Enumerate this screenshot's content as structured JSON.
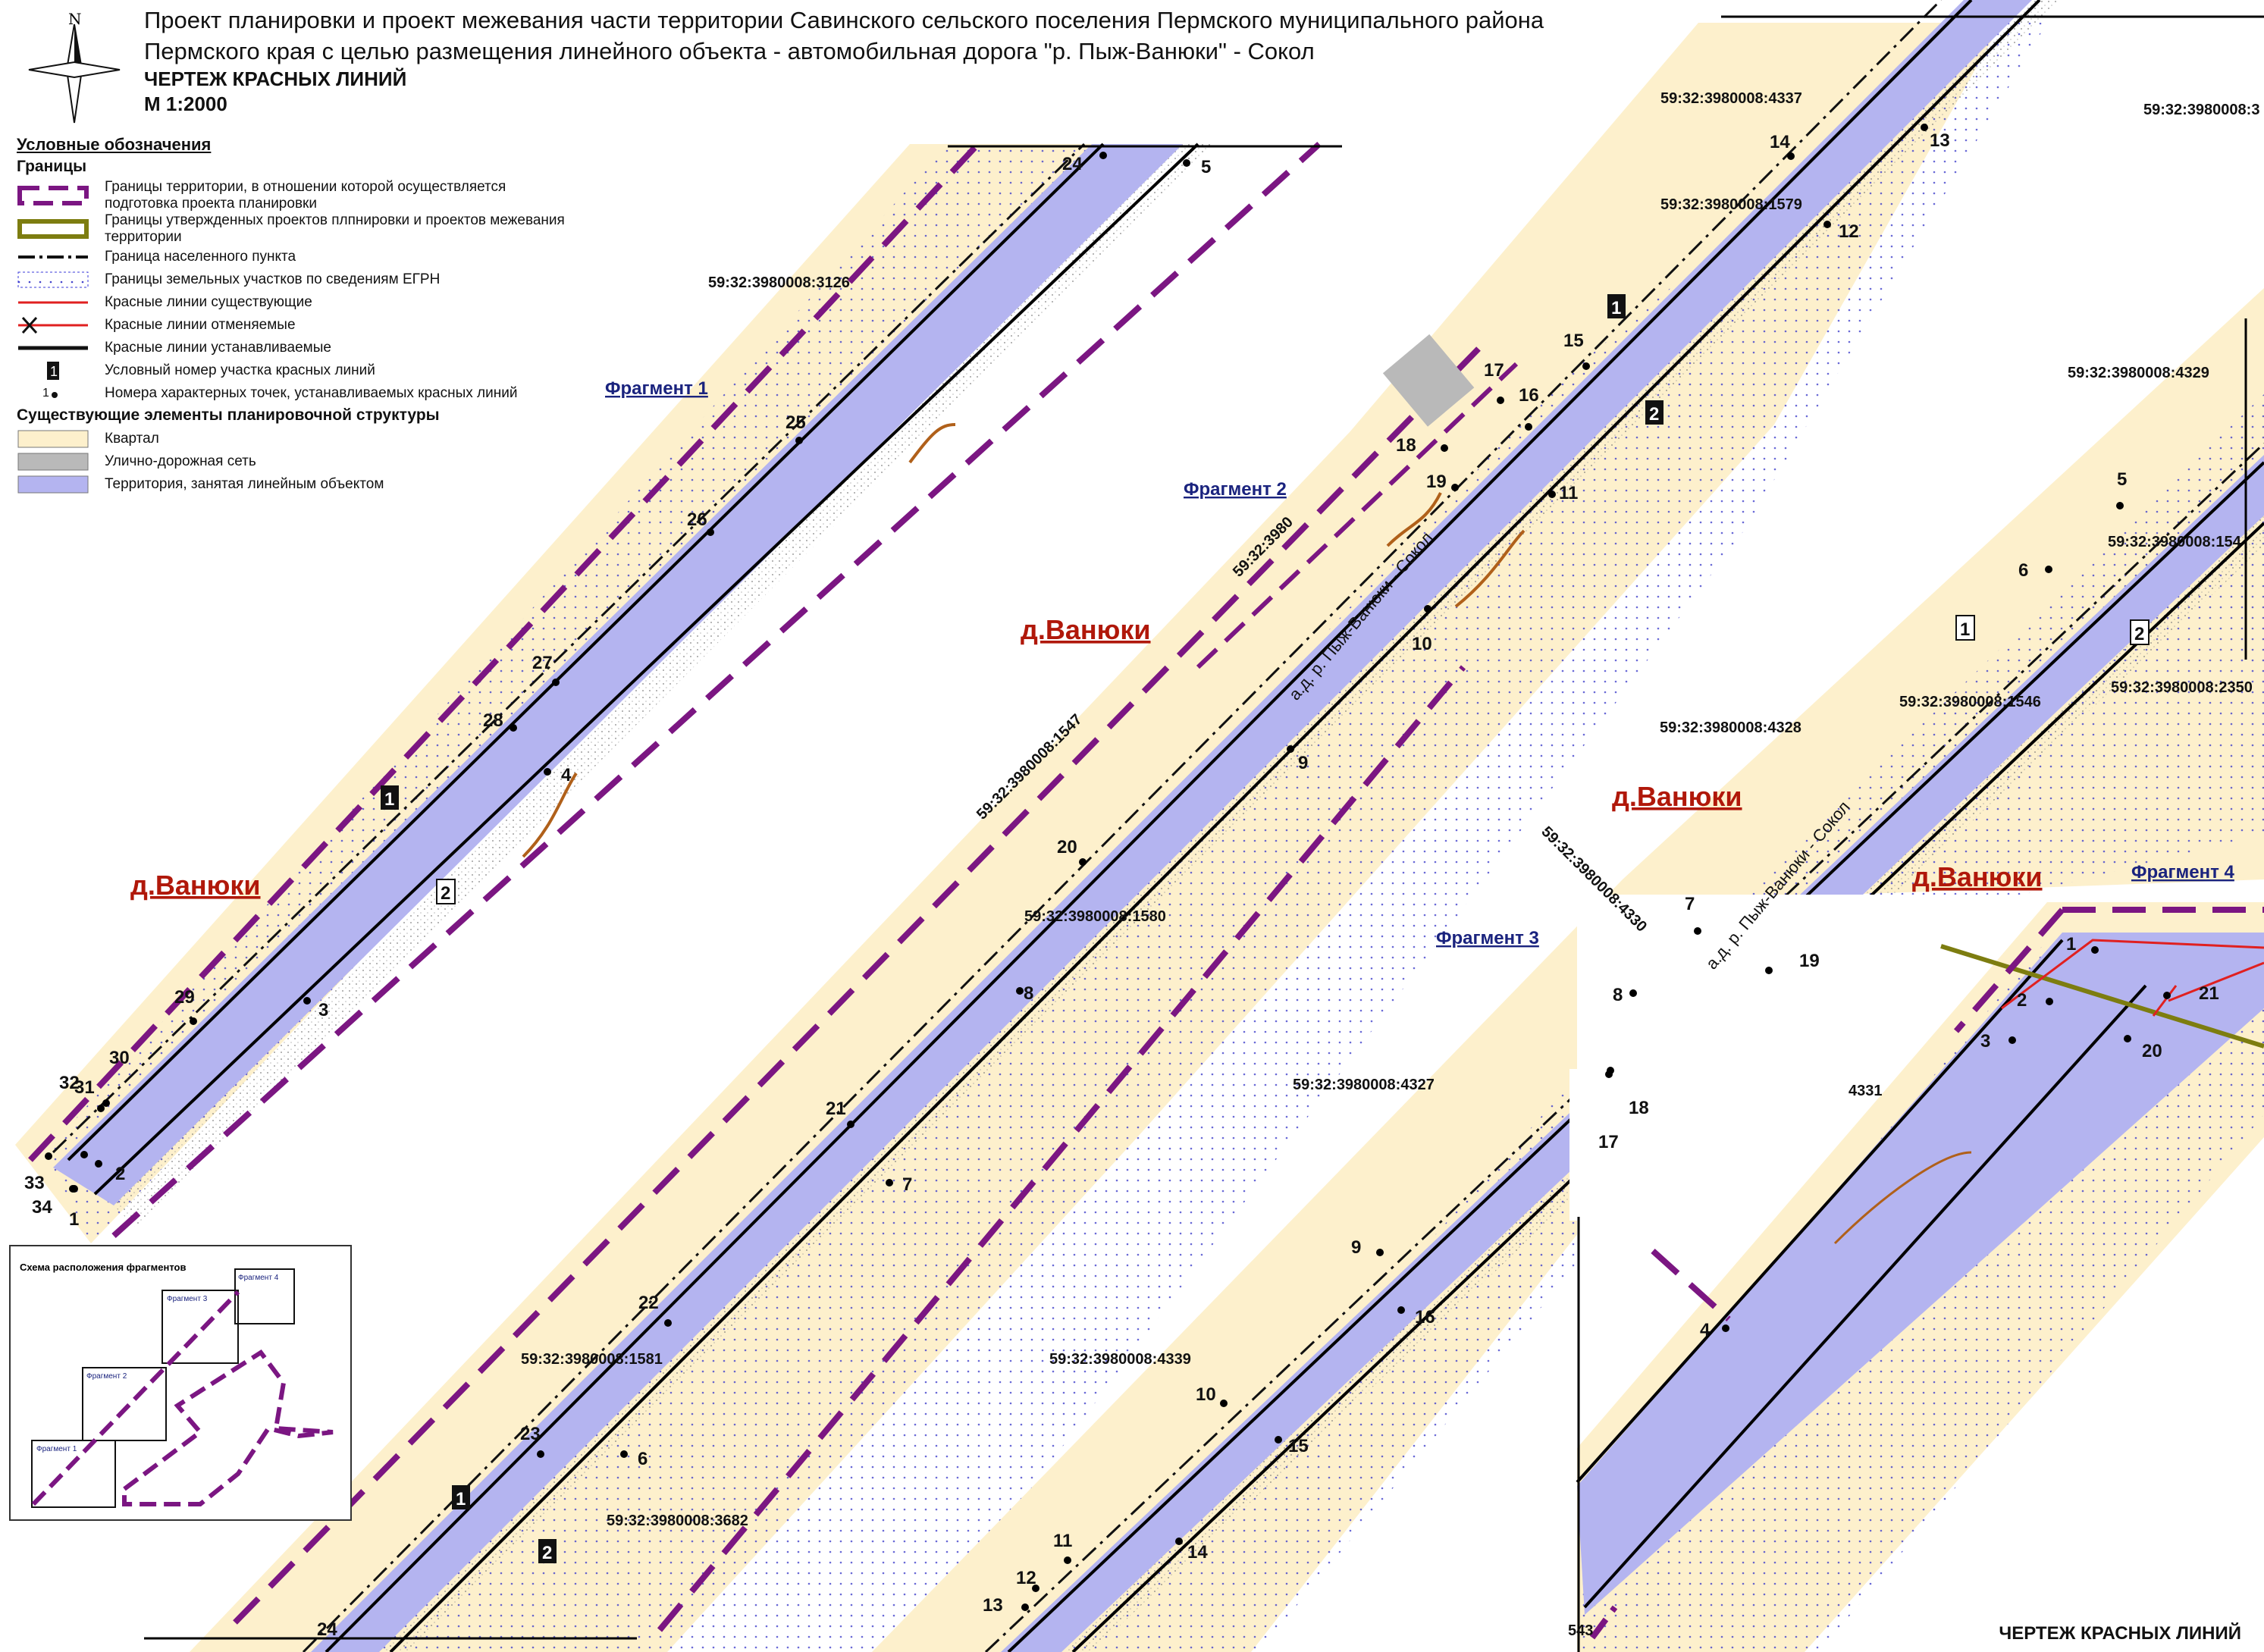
{
  "header": {
    "title_line1": "Проект планировки и проект межевания части территории Савинского сельского поселения Пермского муниципального района",
    "title_line2": "Пермского края с целью размещения линейного объекта - автомобильная дорога \"р. Пыж-Ванюки\" - Сокол",
    "drawing_name": "ЧЕРТЕЖ КРАСНЫХ ЛИНИЙ",
    "scale": "М 1:2000",
    "north_letter": "N"
  },
  "legend": {
    "title": "Условные обозначения",
    "group1": "Границы",
    "items1": [
      "Границы территории, в отношении которой осуществляется подготовка проекта планировки",
      "Границы утвержденных проектов плпнировки и проектов межевания территории",
      "Граница населенного пункта",
      "Границы земельных участков по сведениям ЕГРН",
      "Красные линии существующие",
      "Красные линии отменяемые",
      "Красные линии устанавливаемые",
      "Условный номер участка красных линий",
      "Номера характерных точек, устанавливаемых красных линий"
    ],
    "legend_num_sample": "1",
    "legend_pt_sample": "1",
    "group2": "Существующие элементы планировочной структуры",
    "items2": [
      "Квартал",
      "Улично-дорожная сеть",
      "Территория, занятая линейным объектом"
    ]
  },
  "colors": {
    "block": "#fdf0cc",
    "road": "#b4b4f0",
    "boundary": "#7b1682",
    "approved": "#7d7d10",
    "red_line": "#000000",
    "red_existing": "#e02020",
    "street": "#b9b9b9",
    "parcel": "#3a3ad8"
  },
  "fragments": [
    "Фрагмент 1",
    "Фрагмент 2",
    "Фрагмент 3",
    "Фрагмент 4"
  ],
  "village": "д.Ванюки",
  "road_label": "а.д. р. Пыж-Ванюки - Сокол",
  "cadastral": [
    "59:32:3980008:3126",
    "59:32:3980008:4337",
    "59:32:3980008:1579",
    "59:32:3980008:4329",
    "59:32:3980008:1547",
    "59:32:3980008:1580",
    "59:32:3980008:1581",
    "59:32:3980008:3682",
    "59:32:3980008:4328",
    "59:32:3980008:1546",
    "59:32:3980008:2350",
    "59:32:3980008:4330",
    "59:32:3980008:4327",
    "59:32:3980008:4339",
    "59:32:3980008:154",
    "59:32:3980008:3",
    "59:32:3980",
    "4331",
    "543"
  ],
  "points_f1": [
    "1",
    "2",
    "3",
    "4",
    "5",
    "24",
    "25",
    "26",
    "27",
    "28",
    "29",
    "30",
    "31",
    "32",
    "33",
    "34"
  ],
  "points_f2": [
    "6",
    "7",
    "8",
    "9",
    "10",
    "11",
    "12",
    "13",
    "14",
    "15",
    "16",
    "17",
    "18",
    "19",
    "20",
    "21",
    "22",
    "23",
    "24"
  ],
  "points_f3": [
    "7",
    "8",
    "9",
    "10",
    "11",
    "12",
    "13",
    "14",
    "15",
    "16",
    "17",
    "18",
    "19"
  ],
  "points_f4": [
    "1",
    "2",
    "3",
    "4",
    "5",
    "6",
    "20",
    "21"
  ],
  "section_nums": [
    "1",
    "2"
  ],
  "inset": {
    "caption": "Схема расположения фрагментов",
    "frames": [
      "Фрагмент 1",
      "Фрагмент 2",
      "Фрагмент 3",
      "Фрагмент 4"
    ]
  },
  "footer": "ЧЕРТЕЖ КРАСНЫХ ЛИНИЙ"
}
